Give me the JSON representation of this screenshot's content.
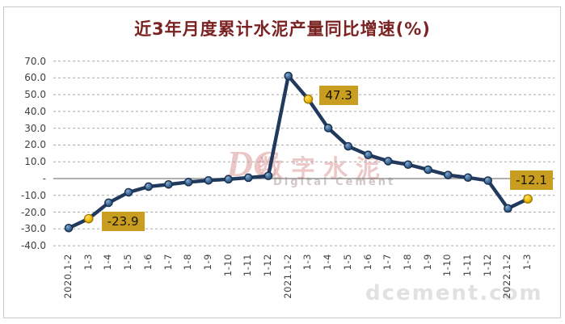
{
  "title": "近3年月度累计水泥产量同比增速(%)",
  "watermark": {
    "logo": "DC",
    "cn": "数字水泥",
    "en": "Digital Cement",
    "site": "dcement.com"
  },
  "chart_data": {
    "type": "line",
    "title": "近3年月度累计水泥产量同比增速(%)",
    "xlabel": "",
    "ylabel": "",
    "ylim": [
      -40,
      70
    ],
    "grid": "horizontal-dashed",
    "legend": "none",
    "categories": [
      "2020.1-2",
      "1-3",
      "1-4",
      "1-5",
      "1-6",
      "1-7",
      "1-8",
      "1-9",
      "1-10",
      "1-11",
      "1-12",
      "2021.1-2",
      "1-3",
      "1-4",
      "1-5",
      "1-6",
      "1-7",
      "1-8",
      "1-9",
      "1-10",
      "1-11",
      "1-12",
      "2022.1-2",
      "1-3"
    ],
    "values": [
      -29.5,
      -23.9,
      -14.4,
      -8.2,
      -4.8,
      -3.5,
      -2.1,
      -1.1,
      -0.4,
      0.5,
      1.6,
      61.1,
      47.3,
      30.1,
      19.2,
      14.1,
      10.4,
      8.3,
      5.3,
      2.1,
      0.6,
      -1.2,
      -17.8,
      -12.1
    ],
    "yticks": [
      {
        "label": "70.0",
        "value": 70
      },
      {
        "label": "60.0",
        "value": 60
      },
      {
        "label": "50.0",
        "value": 50
      },
      {
        "label": "40.0",
        "value": 40
      },
      {
        "label": "30.0",
        "value": 30
      },
      {
        "label": "20.0",
        "value": 20
      },
      {
        "label": "10.0",
        "value": 10
      },
      {
        "label": "-",
        "value": 0
      },
      {
        "label": "-10.0",
        "value": -10
      },
      {
        "label": "-20.0",
        "value": -20
      },
      {
        "label": "-30.0",
        "value": -30
      },
      {
        "label": "-40.0",
        "value": -40
      }
    ],
    "highlight_indices": [
      1,
      12,
      23
    ],
    "annotations": [
      {
        "index": 1,
        "label": "-23.9"
      },
      {
        "index": 12,
        "label": "47.3"
      },
      {
        "index": 23,
        "label": "-12.1"
      }
    ],
    "colors": {
      "line": "#20395c",
      "marker": "#44709e",
      "highlight_marker": "#f2c011",
      "annotation_bg": "#c99d1f",
      "gridline": "#a8a8a8",
      "zero_line": "#7f7f7f",
      "title": "#7b2222",
      "axis_text": "#3f3f3f"
    }
  }
}
